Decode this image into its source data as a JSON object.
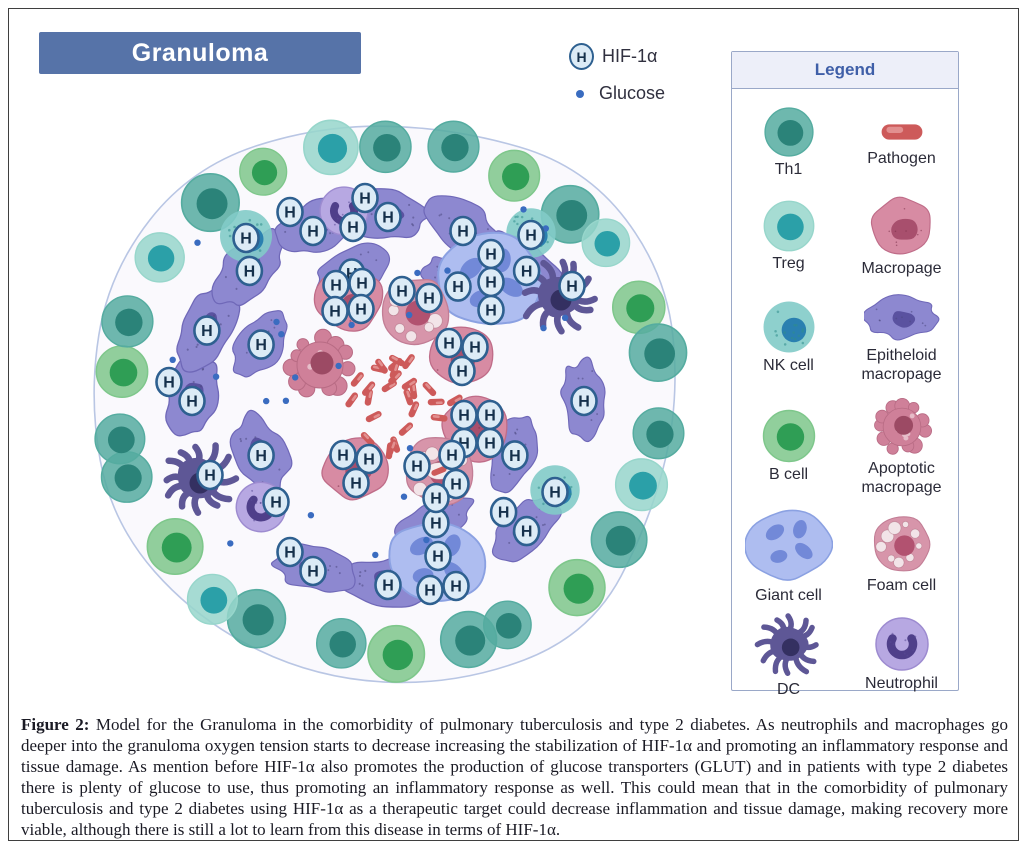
{
  "figure": {
    "banner_title": "Granuloma",
    "key": {
      "hif_symbol": "H",
      "hif_label": "HIF-1α",
      "glucose_label": "Glucose"
    },
    "legend": {
      "title": "Legend",
      "items": [
        {
          "name": "Th1",
          "type": "th1"
        },
        {
          "name": "Pathogen",
          "type": "pathogen"
        },
        {
          "name": "Treg",
          "type": "treg"
        },
        {
          "name": "Macropage",
          "type": "macrophage"
        },
        {
          "name": "NK cell",
          "type": "nk"
        },
        {
          "name": "Epitheloid macropage",
          "type": "epitheloid"
        },
        {
          "name": "B cell",
          "type": "bcell"
        },
        {
          "name": "Apoptotic macropage",
          "type": "apoptotic"
        },
        {
          "name": "Giant cell",
          "type": "giant"
        },
        {
          "name": "Foam cell",
          "type": "foam"
        },
        {
          "name": "DC",
          "type": "dc"
        },
        {
          "name": "Neutrophil",
          "type": "neutrophil"
        }
      ]
    },
    "caption": {
      "label": "Figure 2:",
      "text": " Model for the Granuloma in the comorbidity of pulmonary tuberculosis and type 2 diabetes. As neutrophils and macrophages go deeper into the granuloma oxygen tension starts to decrease increasing the stabilization of HIF-1α and promoting an inflammatory response and tissue damage. As mention before HIF-1α also promotes the production of glucose transporters (GLUT) and in patients with type 2 diabetes there is plenty of glucose to use, thus promoting an inflammatory response as well. This could mean that in the comorbidity of pulmonary tuberculosis and type 2 diabetes using HIF-1α as a therapeutic target could decrease inflammation and tissue damage, making recovery more viable, although there is still a lot to learn from this disease in terms of HIF-1α."
    },
    "colors": {
      "banner_bg": "#5673a8",
      "frame_border": "#3f3f3f",
      "blob_fill": "#faf9fd",
      "blob_stroke": "#b9c6e4",
      "legend_border": "#9aa8c8",
      "legend_header_bg": "#edeff9",
      "legend_title_text": "#3f5fa8",
      "hif_badge_fill": "#dcebf6",
      "hif_badge_stroke": "#2e6090",
      "hif_badge_letter": "#15304b",
      "glucose": "#3a6cc0",
      "cells": {
        "th1": {
          "body": "#55aca0",
          "nucleus": "#2b8379"
        },
        "treg": {
          "body": "#97d6cb",
          "nucleus": "#2ba0a8"
        },
        "bcell": {
          "body": "#7ec78b",
          "nucleus": "#2f9e55"
        },
        "nk": {
          "body": "#82cbc8",
          "nucleus": "#2a80b0",
          "speckle": "#2f8d8d"
        },
        "epitheloid": {
          "body": "#8d88d0",
          "edge": "#6f68b8",
          "nucleus": "#5a52a0",
          "dot": "#4d4880"
        },
        "macrophage": {
          "body": "#d78ba3",
          "edge": "#bf6c88",
          "nucleus": "#a84f6d"
        },
        "foam": {
          "body": "#d795aa",
          "edge": "#c27d95",
          "vesicle": "#f2e4e8",
          "nucleus": "#b25270"
        },
        "apoptotic": {
          "body": "#cf8099",
          "edge": "#b86b84",
          "nucleus": "#9c4a64"
        },
        "giant": {
          "body": "#aebdf0",
          "edge": "#8ba1e2",
          "nucleus": "#7289d8"
        },
        "dc": {
          "body": "#5e5796",
          "edge": "#474070",
          "nucleus": "#343061"
        },
        "neutrophil": {
          "body": "#b7a8e2",
          "edge": "#9d8bd0",
          "nucleus": "#4f3f8a"
        },
        "pathogen": {
          "body": "#cd5a5a",
          "edge": "#b84848",
          "inner": "#e59a9a"
        }
      }
    }
  }
}
